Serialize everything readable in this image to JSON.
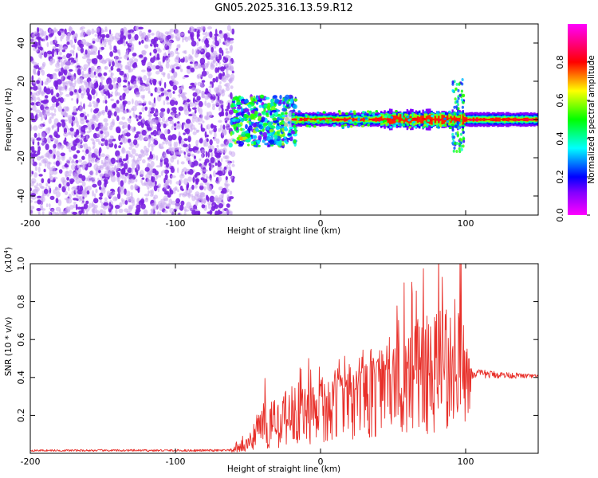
{
  "title": "GN05.2025.316.13.59.R12",
  "chart_data": [
    {
      "type": "heatmap",
      "xlabel": "Height of straight line (km)",
      "ylabel": "Frequency (Hz)",
      "xlim": [
        -200,
        150
      ],
      "ylim": [
        -50,
        50
      ],
      "x_ticks": [
        -200,
        -100,
        0,
        100
      ],
      "y_ticks": [
        -40,
        -20,
        0,
        20,
        40
      ],
      "colorbar": {
        "label": "Normalized spectral amplitude",
        "range": [
          0,
          1
        ],
        "ticks": [
          "0.0",
          "0.2",
          "0.4",
          "0.6",
          "0.8"
        ],
        "colormap": "rainbow (magenta-blue-cyan-green-yellow-red-magenta)"
      },
      "regions": [
        {
          "x_range": [
            -200,
            -62
          ],
          "freq_range": [
            -50,
            48
          ],
          "amplitude": "low (0.05-0.25), scattered noise"
        },
        {
          "x_range": [
            -62,
            -20
          ],
          "freq_range": [
            -15,
            12
          ],
          "amplitude": "mixed, bursts up to ~0.9 near -10 Hz"
        },
        {
          "x_range": [
            -20,
            150
          ],
          "freq_range": [
            -3,
            3
          ],
          "amplitude": "band centered at 0 Hz, peaks ~0.9"
        },
        {
          "x_range": [
            90,
            100
          ],
          "freq_range": [
            -18,
            22
          ],
          "amplitude": "vertical spike, moderate"
        }
      ],
      "grid": false
    },
    {
      "type": "line",
      "xlabel": "Height of straight line (km)",
      "ylabel": "SNR (10 * v/v)",
      "y_scale_note": "(x10^4)",
      "xlim": [
        -200,
        150
      ],
      "ylim": [
        0,
        1.0
      ],
      "x_ticks": [
        -200,
        -100,
        0,
        100
      ],
      "y_ticks": [
        0.2,
        0.4,
        0.6,
        0.8,
        1.0
      ],
      "series": [
        {
          "color": "#e8302a",
          "envelope": [
            {
              "x": -200,
              "base": 0.015,
              "amp": 0.01
            },
            {
              "x": -62,
              "base": 0.015,
              "amp": 0.012
            },
            {
              "x": -50,
              "base": 0.05,
              "amp": 0.05
            },
            {
              "x": -40,
              "base": 0.12,
              "amp": 0.2
            },
            {
              "x": -20,
              "base": 0.17,
              "amp": 0.26
            },
            {
              "x": 0,
              "base": 0.28,
              "amp": 0.15
            },
            {
              "x": 20,
              "base": 0.36,
              "amp": 0.12
            },
            {
              "x": 40,
              "base": 0.44,
              "amp": 0.1
            },
            {
              "x": 60,
              "base": 0.45,
              "amp": 0.38
            },
            {
              "x": 80,
              "base": 0.45,
              "amp": 0.45
            },
            {
              "x": 95,
              "base": 0.45,
              "amp": 0.55
            },
            {
              "x": 105,
              "base": 0.42,
              "amp": 0.05
            },
            {
              "x": 150,
              "base": 0.405,
              "amp": 0.02
            }
          ],
          "peak": {
            "x": 96,
            "y": 1.0
          }
        }
      ],
      "grid": false
    }
  ]
}
